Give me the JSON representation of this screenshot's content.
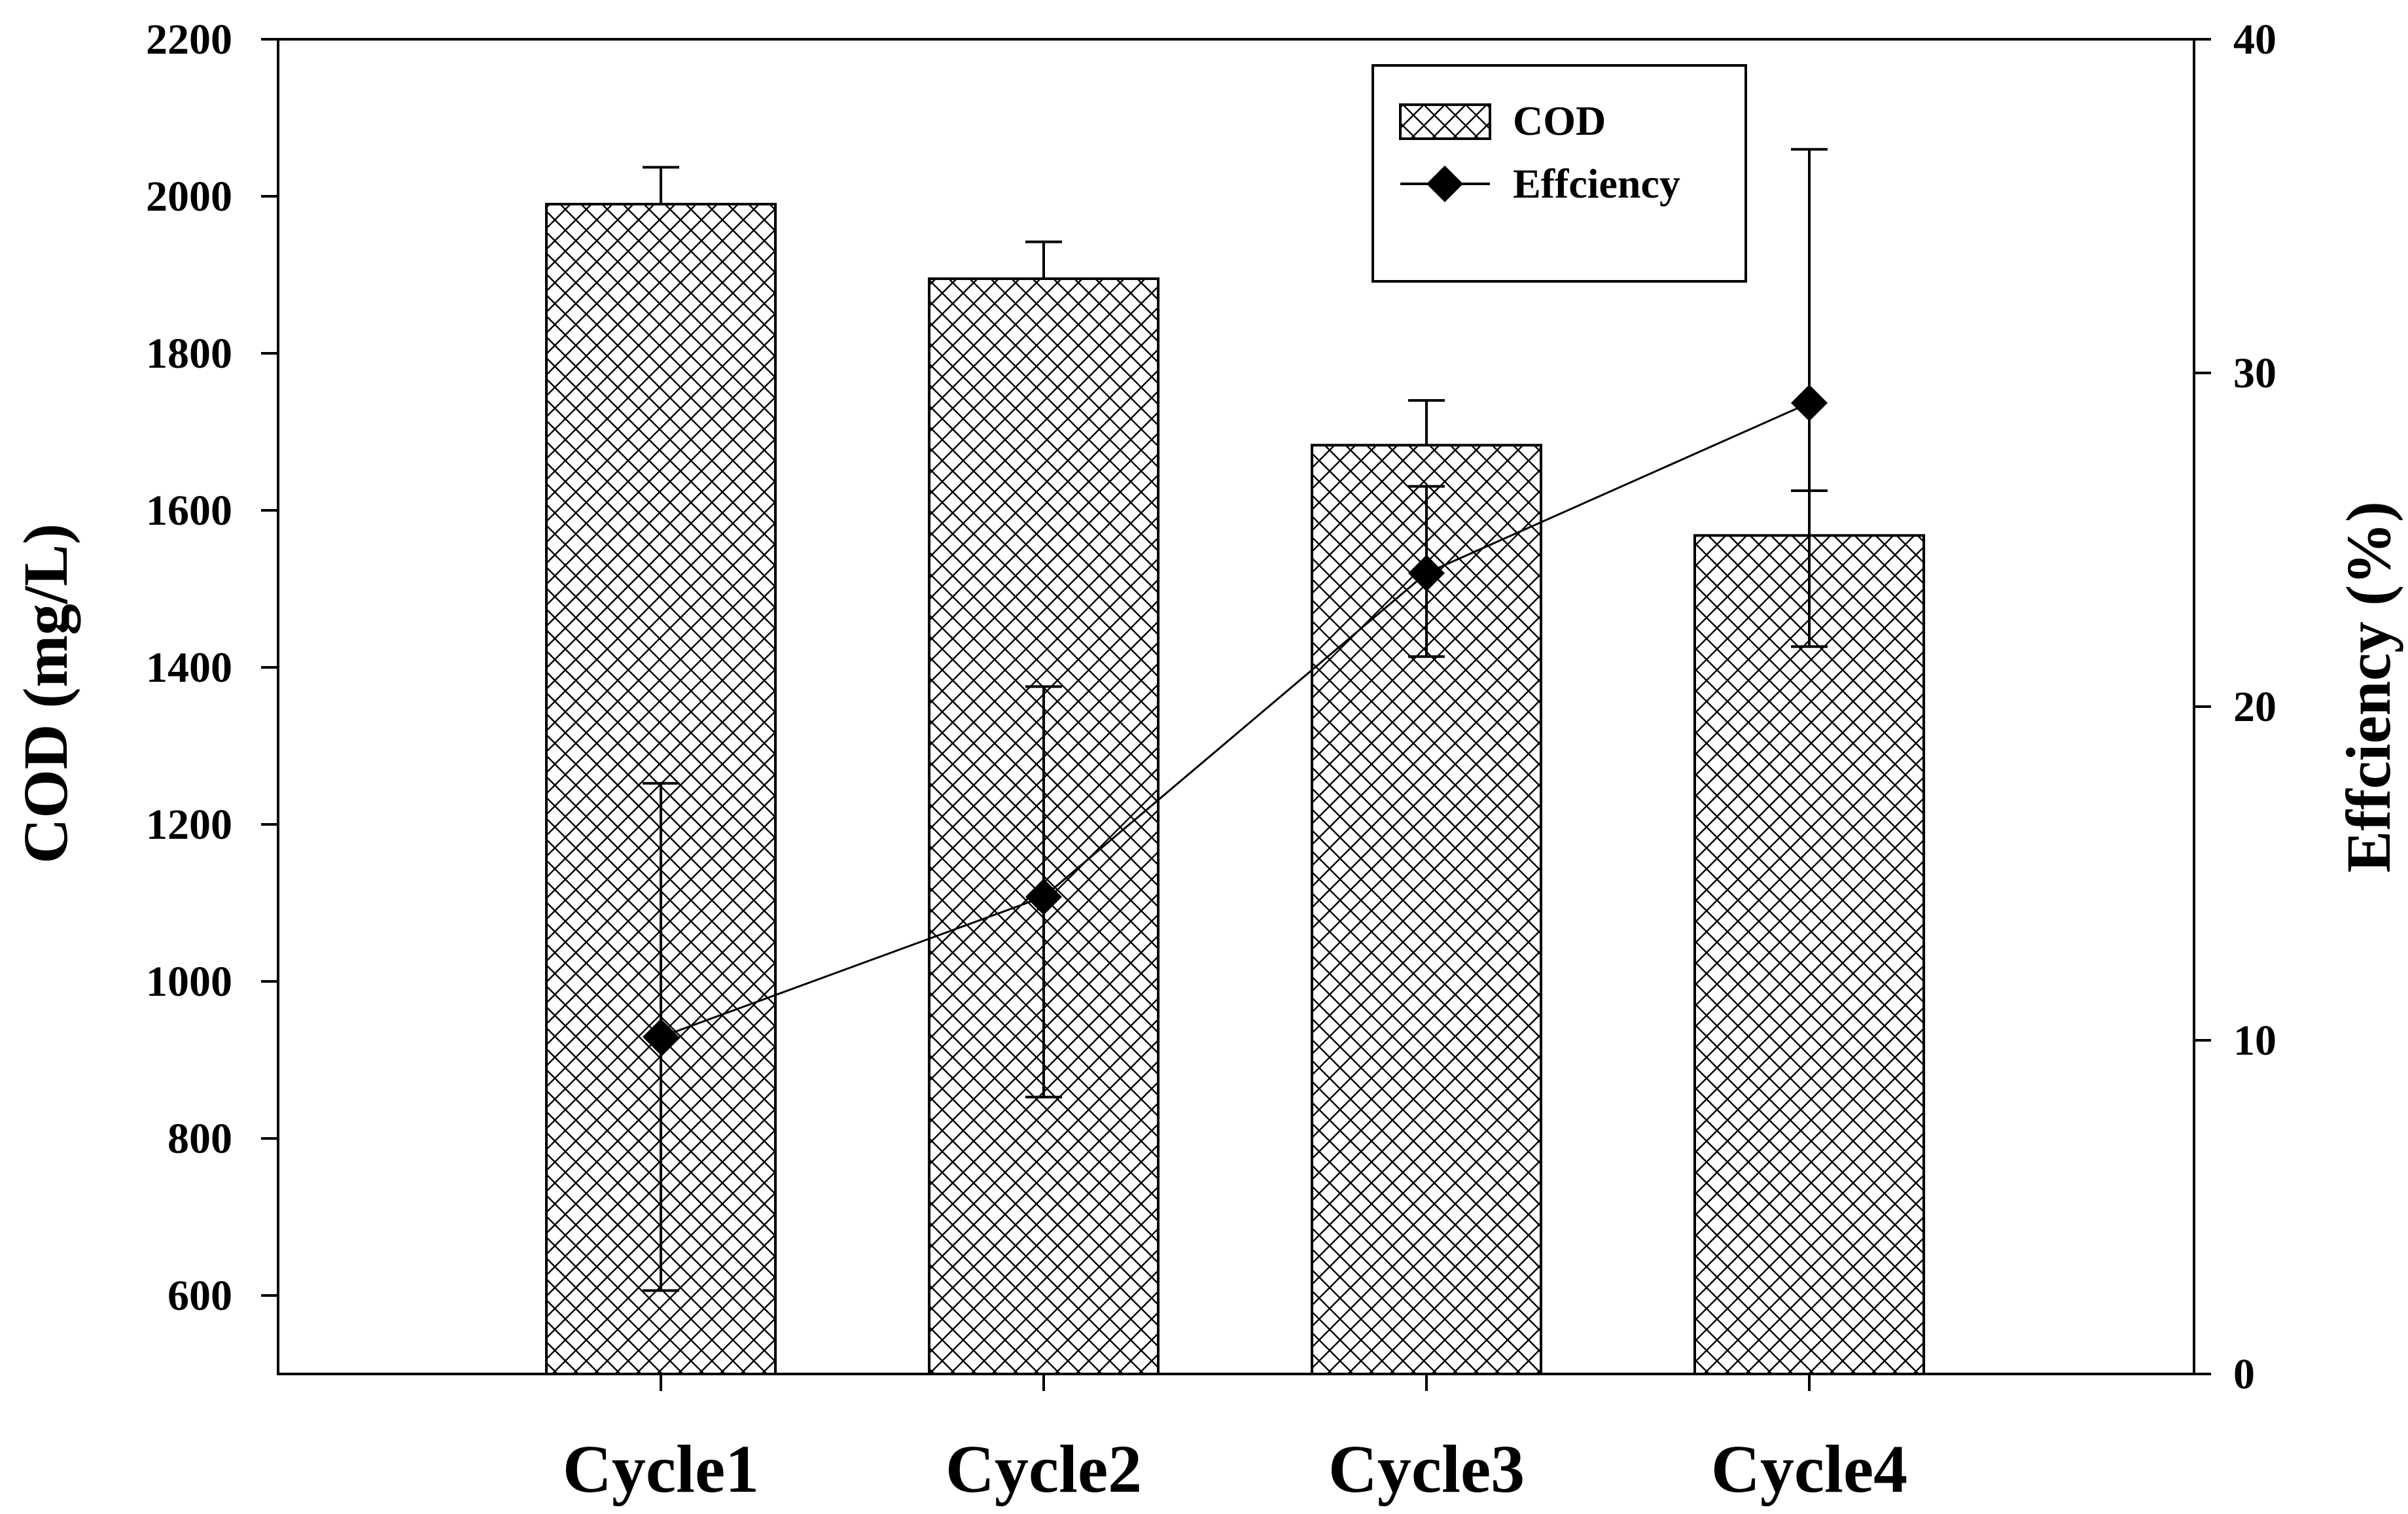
{
  "chart_data": {
    "type": "bar",
    "categories": [
      "Cycle1",
      "Cycle2",
      "Cycle3",
      "Cycle4"
    ],
    "ylabel": "COD (mg/L)",
    "y2label": "Effciency (%)",
    "xlabel": "",
    "ylim": [
      500,
      2200
    ],
    "y2lim": [
      0,
      40
    ],
    "yticks": [
      600,
      800,
      1000,
      1200,
      1400,
      1600,
      1800,
      2000,
      2200
    ],
    "y2ticks": [
      0,
      10,
      20,
      30,
      40
    ],
    "legend_position": "top-right",
    "series": [
      {
        "name": "COD",
        "kind": "bar",
        "axis": "left",
        "pattern": "crosshatch",
        "values": [
          1990,
          1895,
          1683,
          1568
        ],
        "error_upper": [
          2037,
          1942,
          1740,
          1625
        ]
      },
      {
        "name": "Effciency",
        "kind": "line",
        "axis": "right",
        "marker": "diamond",
        "values": [
          10.1,
          14.3,
          24.0,
          29.1
        ],
        "error_lower": [
          2.5,
          8.3,
          21.5,
          21.8
        ],
        "error_upper": [
          17.7,
          20.6,
          26.6,
          36.7
        ]
      }
    ]
  }
}
